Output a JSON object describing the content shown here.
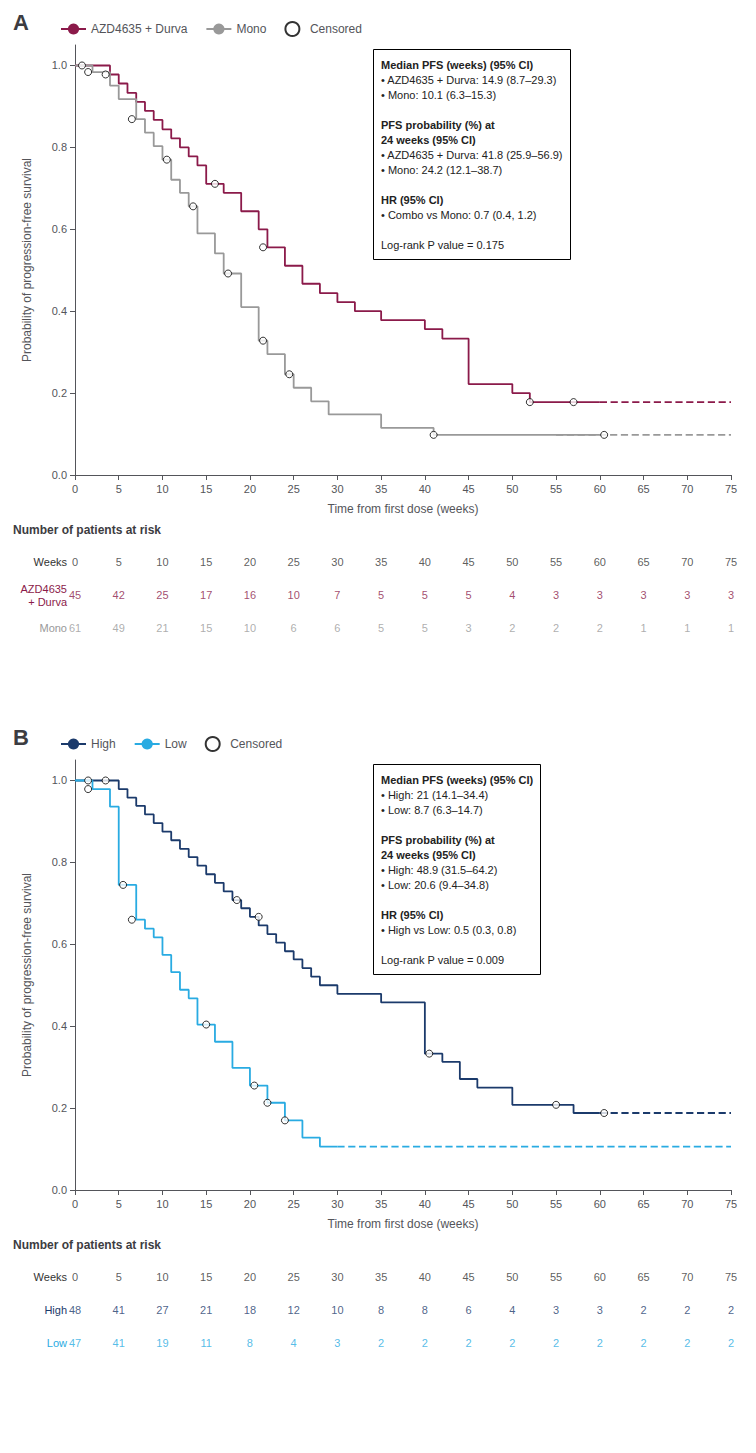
{
  "chart_data": [
    {
      "type": "step",
      "title": "A",
      "xlabel": "Time from first dose (weeks)",
      "ylabel": "Probability of progression-free survival",
      "xlim": [
        0,
        75
      ],
      "ylim": [
        0.0,
        1.05
      ],
      "xticks": [
        0,
        5,
        10,
        15,
        20,
        25,
        30,
        35,
        40,
        45,
        50,
        55,
        60,
        65,
        70,
        75
      ],
      "yticks": [
        {
          "value": 0.0,
          "label": "0.0"
        },
        0.2,
        0.4,
        0.6,
        0.8,
        {
          "value": 1.0,
          "label": "1.0"
        }
      ],
      "grid": false,
      "legend": "upper left",
      "series": [
        {
          "name": "AZD4635 + Durva",
          "color": "#8B1A4A",
          "line_style": "solid",
          "x": [
            0,
            2,
            4,
            5,
            6,
            7,
            8,
            9,
            10,
            11,
            12,
            13,
            14,
            15,
            17,
            19,
            21,
            22,
            24,
            26,
            28,
            30,
            32,
            35,
            40,
            42,
            45,
            50,
            52,
            55,
            60
          ],
          "values": [
            1.0,
            1.0,
            0.978,
            0.956,
            0.933,
            0.911,
            0.889,
            0.867,
            0.844,
            0.822,
            0.8,
            0.778,
            0.756,
            0.711,
            0.689,
            0.644,
            0.6,
            0.556,
            0.511,
            0.467,
            0.444,
            0.422,
            0.4,
            0.378,
            0.356,
            0.333,
            0.222,
            0.2,
            0.178,
            0.178,
            0.178
          ],
          "dashed_x": [
            60,
            75
          ],
          "dashed_values": [
            0.178,
            0.178
          ]
        },
        {
          "name": "Mono",
          "color": "#999999",
          "line_style": "solid",
          "x": [
            0,
            2,
            4,
            5,
            7,
            8,
            9,
            10,
            11,
            12,
            13,
            14,
            16,
            17,
            19,
            21,
            22,
            24,
            25,
            27,
            29,
            35,
            41,
            45,
            50,
            55,
            60
          ],
          "values": [
            1.0,
            0.984,
            0.951,
            0.918,
            0.869,
            0.836,
            0.803,
            0.77,
            0.721,
            0.689,
            0.656,
            0.59,
            0.541,
            0.492,
            0.41,
            0.328,
            0.295,
            0.246,
            0.213,
            0.18,
            0.148,
            0.115,
            0.098,
            0.098,
            0.098,
            0.098,
            0.098
          ],
          "dashed_x": [
            55,
            75
          ],
          "dashed_values": [
            0.098,
            0.098
          ]
        },
        {
          "name": "Censored",
          "type": "scatter",
          "marker": "circle",
          "color": "#000000",
          "x": [
            0.8,
            3.5,
            16.0,
            21.5,
            52.0,
            57.0,
            1.5,
            6.5,
            10.5,
            13.5,
            17.5,
            21.5,
            24.5,
            41.0,
            60.5
          ],
          "values": [
            1.0,
            0.978,
            0.711,
            0.556,
            0.178,
            0.178,
            0.984,
            0.869,
            0.77,
            0.656,
            0.492,
            0.328,
            0.246,
            0.098,
            0.098
          ]
        }
      ],
      "annotations": {
        "sections": [
          {
            "heading": [
              "Median PFS (weeks) (95% CI)"
            ],
            "lines": [
              "• AZD4635 + Durva: 14.9 (8.7–29.3)",
              "• Mono: 10.1 (6.3–15.3)"
            ]
          },
          {
            "heading": [
              "PFS probability (%) at",
              "24 weeks (95% CI)"
            ],
            "lines": [
              "• AZD4635 + Durva: 41.8 (25.9–56.9)",
              "• Mono: 24.2 (12.1–38.7)"
            ]
          },
          {
            "heading": [
              "HR (95% CI)"
            ],
            "lines": [
              "• Combo vs Mono: 0.7 (0.4, 1.2)"
            ]
          }
        ],
        "footer": "Log-rank P value = 0.175"
      },
      "risk_table": {
        "title": "Number of patients at risk",
        "header": "Weeks",
        "weeks": [
          0,
          5,
          10,
          15,
          20,
          25,
          30,
          35,
          40,
          45,
          50,
          55,
          60,
          65,
          70,
          75
        ],
        "rows": [
          {
            "label": "AZD4635\n+ Durva",
            "color": "#8B1A4A",
            "values": [
              45,
              42,
              25,
              17,
              16,
              10,
              7,
              5,
              5,
              5,
              4,
              3,
              3,
              3,
              3,
              3
            ]
          },
          {
            "label": "Mono",
            "color": "#999999",
            "values": [
              61,
              49,
              21,
              15,
              10,
              6,
              6,
              5,
              5,
              3,
              2,
              2,
              2,
              1,
              1,
              1
            ]
          }
        ]
      }
    },
    {
      "type": "step",
      "title": "B",
      "xlabel": "Time from first dose (weeks)",
      "ylabel": "Probability of progression-free survival",
      "xlim": [
        0,
        75
      ],
      "ylim": [
        0.0,
        1.05
      ],
      "xticks": [
        0,
        5,
        10,
        15,
        20,
        25,
        30,
        35,
        40,
        45,
        50,
        55,
        60,
        65,
        70,
        75
      ],
      "yticks": [
        {
          "value": 0.0,
          "label": "0.0"
        },
        0.2,
        0.4,
        0.6,
        0.8,
        {
          "value": 1.0,
          "label": "1.0"
        }
      ],
      "grid": false,
      "legend": "upper left",
      "series": [
        {
          "name": "High",
          "color": "#1B3A6B",
          "line_style": "solid",
          "x": [
            0,
            4,
            5,
            6,
            7,
            8,
            9,
            10,
            11,
            12,
            13,
            14,
            15,
            16,
            17,
            18,
            19,
            20,
            21,
            22,
            23,
            24,
            25,
            26,
            27,
            28,
            30,
            35,
            40,
            42,
            44,
            46,
            50,
            55,
            57,
            60
          ],
          "values": [
            1.0,
            1.0,
            0.979,
            0.958,
            0.938,
            0.917,
            0.896,
            0.875,
            0.854,
            0.833,
            0.813,
            0.792,
            0.771,
            0.75,
            0.729,
            0.708,
            0.688,
            0.667,
            0.646,
            0.625,
            0.604,
            0.583,
            0.563,
            0.542,
            0.521,
            0.5,
            0.479,
            0.458,
            0.333,
            0.313,
            0.271,
            0.25,
            0.208,
            0.208,
            0.188,
            0.188
          ],
          "dashed_x": [
            60,
            75
          ],
          "dashed_values": [
            0.188,
            0.188
          ]
        },
        {
          "name": "Low",
          "color": "#29ABE2",
          "line_style": "solid",
          "x": [
            0,
            2,
            4,
            5,
            7,
            8,
            9,
            10,
            11,
            12,
            13,
            14,
            16,
            18,
            20,
            22,
            24,
            26,
            28,
            30
          ],
          "values": [
            1.0,
            0.979,
            0.936,
            0.745,
            0.66,
            0.638,
            0.617,
            0.574,
            0.532,
            0.489,
            0.468,
            0.404,
            0.362,
            0.298,
            0.255,
            0.213,
            0.17,
            0.128,
            0.106,
            0.106
          ],
          "dashed_x": [
            30,
            75
          ],
          "dashed_values": [
            0.106,
            0.106
          ]
        },
        {
          "name": "Censored",
          "type": "scatter",
          "marker": "circle",
          "color": "#000000",
          "x": [
            1.5,
            3.5,
            18.5,
            21.0,
            40.5,
            55.0,
            60.5,
            1.5,
            5.5,
            6.5,
            15.0,
            20.5,
            22.0,
            24.0
          ],
          "values": [
            1.0,
            1.0,
            0.708,
            0.667,
            0.333,
            0.208,
            0.188,
            0.979,
            0.745,
            0.66,
            0.404,
            0.255,
            0.213,
            0.17
          ]
        }
      ],
      "annotations": {
        "sections": [
          {
            "heading": [
              "Median PFS (weeks) (95% CI)"
            ],
            "lines": [
              "• High: 21 (14.1–34.4)",
              "• Low: 8.7 (6.3–14.7)"
            ]
          },
          {
            "heading": [
              "PFS probability (%) at",
              "24 weeks (95% CI)"
            ],
            "lines": [
              "• High: 48.9 (31.5–64.2)",
              "• Low: 20.6 (9.4–34.8)"
            ]
          },
          {
            "heading": [
              "HR (95% CI)"
            ],
            "lines": [
              "• High vs Low: 0.5 (0.3, 0.8)"
            ]
          }
        ],
        "footer": "Log-rank P value = 0.009"
      },
      "risk_table": {
        "title": "Number of patients at risk",
        "header": "Weeks",
        "weeks": [
          0,
          5,
          10,
          15,
          20,
          25,
          30,
          35,
          40,
          45,
          50,
          55,
          60,
          65,
          70,
          75
        ],
        "rows": [
          {
            "label": "High",
            "color": "#1B3A6B",
            "values": [
              48,
              41,
              27,
              21,
              18,
              12,
              10,
              8,
              8,
              6,
              4,
              3,
              3,
              2,
              2,
              2
            ]
          },
          {
            "label": "Low",
            "color": "#29ABE2",
            "values": [
              47,
              41,
              19,
              11,
              8,
              4,
              3,
              2,
              2,
              2,
              2,
              2,
              2,
              2,
              2,
              2
            ]
          }
        ]
      }
    }
  ]
}
